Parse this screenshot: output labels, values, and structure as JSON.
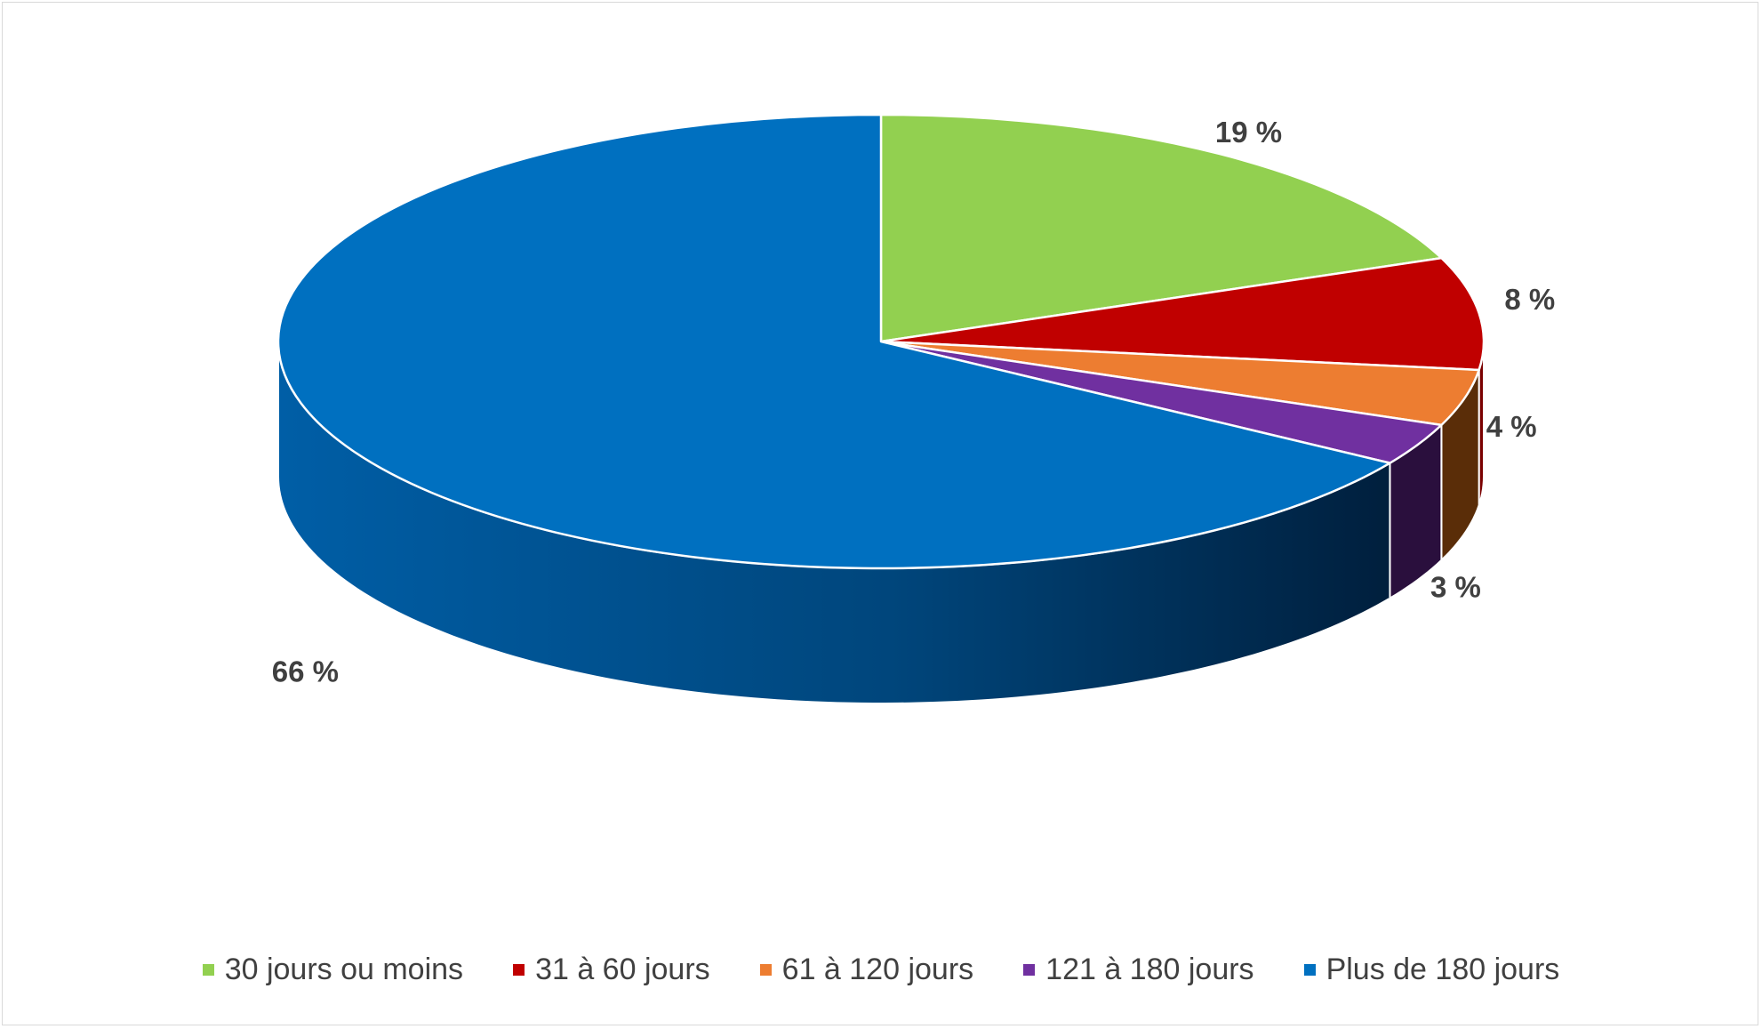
{
  "chart_data": {
    "type": "pie",
    "categories": [
      "30 jours ou moins",
      "31 à 60 jours",
      "61 à 120 jours",
      "121 à 180 jours",
      "Plus de 180 jours"
    ],
    "values": [
      19,
      8,
      4,
      3,
      66
    ],
    "data_labels": [
      "19 %",
      "8 %",
      "4 %",
      "3 %",
      "66 %"
    ],
    "colors": [
      "#92d050",
      "#c00000",
      "#ed7d31",
      "#7030a0",
      "#0070c0"
    ],
    "side_colors": [
      "#5e8a2f",
      "#7a0000",
      "#5a2d08",
      "#2a0f3d",
      "#003a6b"
    ],
    "title": "",
    "legend_position": "bottom",
    "style": "3d"
  }
}
